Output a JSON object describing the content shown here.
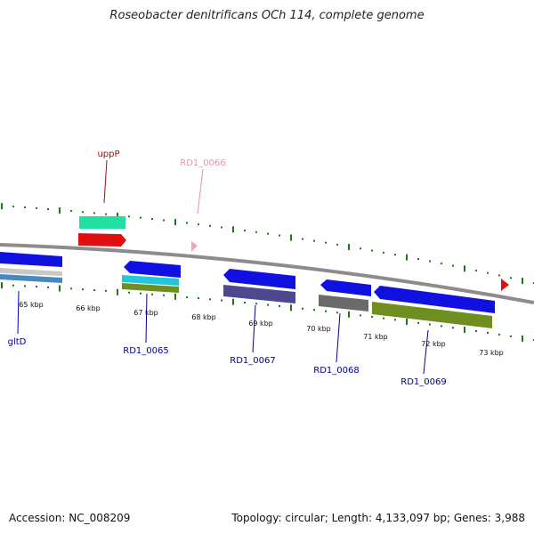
{
  "title": "Roseobacter denitrificans OCh 114, complete genome",
  "footer": {
    "accession": "Accession: NC_008209",
    "summary": "Topology: circular; Length: 4,133,097 bp; Genes: 3,988"
  },
  "colors": {
    "backbone": "#8c8c8c",
    "tick": "#1a7a1a",
    "gene_label_blue": "#00008b",
    "uppP_label": "#c00000",
    "rd1_0066_label": "#f08cb4",
    "blue_feature": "#1010e0",
    "teal_feature": "#1fe0a0",
    "red_feature": "#e01010",
    "pink_feature": "#f4a0c8",
    "cyan_feature": "#20c8d8",
    "olive_feature": "#6e8e20",
    "purple_feature": "#4e4890",
    "gray_feature": "#6a6a6a",
    "steelblue_feature": "#4a86c0",
    "silver_feature": "#c8c8c8"
  },
  "kbp_labels": [
    "65 kbp",
    "66 kbp",
    "67 kbp",
    "68 kbp",
    "69 kbp",
    "70 kbp",
    "71 kbp",
    "72 kbp",
    "73 kbp"
  ],
  "gene_labels": {
    "uppP": "uppP",
    "rd1_0066": "RD1_0066",
    "gltD": "gltD",
    "rd1_0065": "RD1_0065",
    "rd1_0067": "RD1_0067",
    "rd1_0068": "RD1_0068",
    "rd1_0069": "RD1_0069"
  }
}
